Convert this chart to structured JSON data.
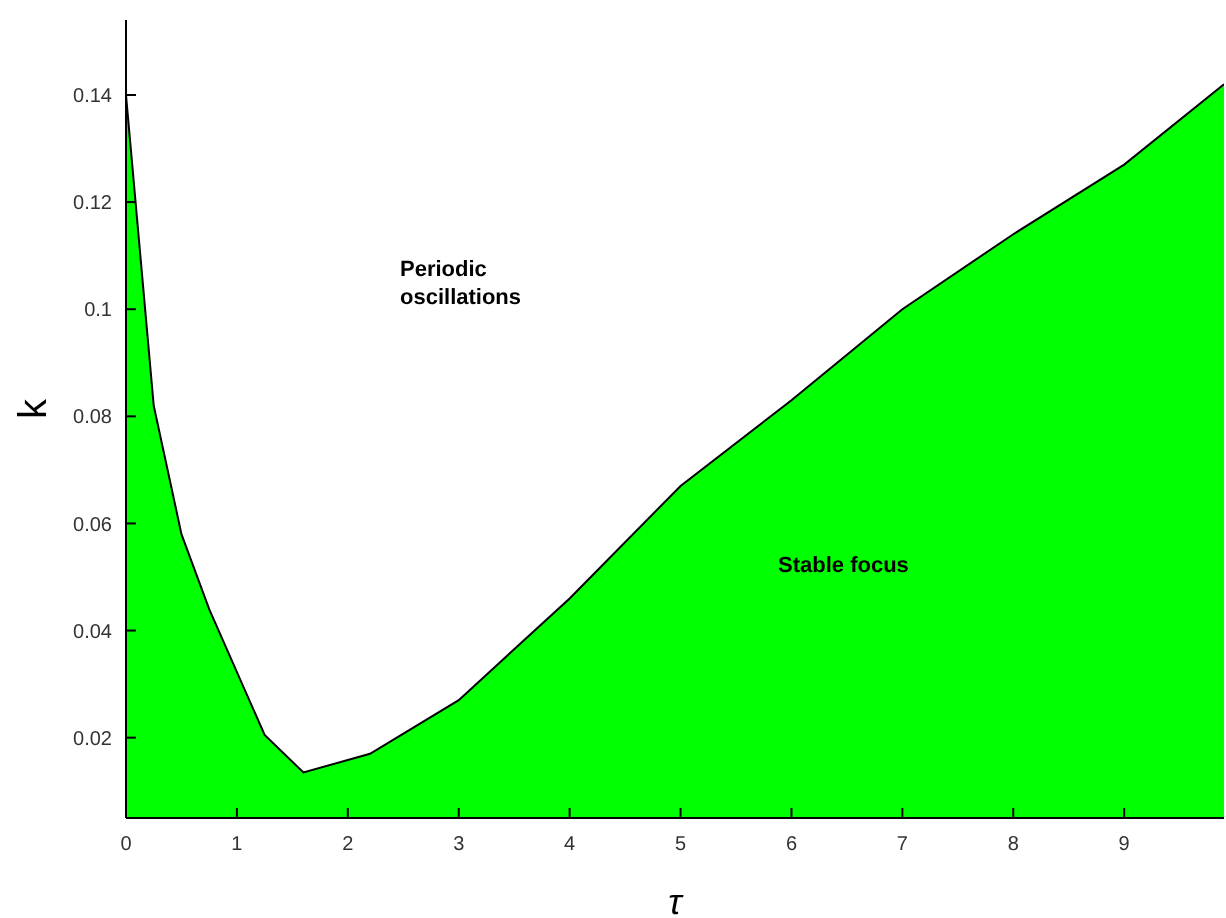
{
  "chart_data": {
    "type": "area",
    "xlabel": "τ",
    "ylabel": "k",
    "x": [
      0,
      0.25,
      0.5,
      0.75,
      1.25,
      1.6,
      2.2,
      3,
      4,
      5,
      6,
      7,
      8,
      9,
      9.9
    ],
    "series": [
      {
        "color": "#00ff00",
        "values": [
          0.14,
          0.082,
          0.058,
          0.044,
          0.0205,
          0.0135,
          0.017,
          0.027,
          0.046,
          0.067,
          0.083,
          0.1,
          0.114,
          0.127,
          0.142
        ]
      }
    ],
    "xlim": [
      0,
      9.9
    ],
    "xticks": [
      0,
      1,
      2,
      3,
      4,
      5,
      6,
      7,
      8,
      9
    ],
    "ylim": [
      0.005,
      0.154
    ],
    "yticks": [
      0.02,
      0.04,
      0.06,
      0.08,
      0.1,
      0.12,
      0.14
    ],
    "grid": false,
    "legend": false,
    "annotations": [
      "Periodic\noscillations",
      "Stable focus"
    ]
  }
}
